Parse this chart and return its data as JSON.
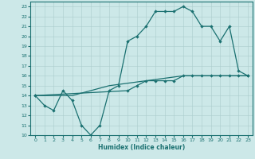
{
  "title": "",
  "xlabel": "Humidex (Indice chaleur)",
  "background_color": "#cce8e8",
  "line_color": "#1a7070",
  "grid_color": "#aacccc",
  "xlim": [
    -0.5,
    23.5
  ],
  "ylim": [
    10,
    23.5
  ],
  "yticks": [
    10,
    11,
    12,
    13,
    14,
    15,
    16,
    17,
    18,
    19,
    20,
    21,
    22,
    23
  ],
  "xticks": [
    0,
    1,
    2,
    3,
    4,
    5,
    6,
    7,
    8,
    9,
    10,
    11,
    12,
    13,
    14,
    15,
    16,
    17,
    18,
    19,
    20,
    21,
    22,
    23
  ],
  "line1_x": [
    0,
    1,
    2,
    3,
    4,
    5,
    6,
    7,
    8,
    9,
    10,
    11,
    12,
    13,
    14,
    15,
    16,
    17,
    18,
    19,
    20,
    21,
    22,
    23
  ],
  "line1_y": [
    14,
    13,
    12.5,
    14.5,
    13.5,
    11,
    10,
    11,
    14.5,
    15,
    19.5,
    20,
    21,
    22.5,
    22.5,
    22.5,
    23,
    22.5,
    21,
    21,
    19.5,
    21,
    16.5,
    16
  ],
  "line2_x": [
    0,
    1,
    2,
    3,
    4,
    5,
    6,
    7,
    8,
    9,
    10,
    11,
    12,
    13,
    14,
    15,
    16,
    17,
    18,
    19,
    20,
    21,
    22,
    23
  ],
  "line2_y": [
    14,
    13,
    12.5,
    14.5,
    13.5,
    11,
    10,
    11,
    14.5,
    15,
    null,
    null,
    null,
    null,
    null,
    null,
    null,
    null,
    null,
    null,
    null,
    null,
    null,
    null
  ],
  "line3_x": [
    0,
    4,
    8,
    12,
    16,
    20,
    23
  ],
  "line3_y": [
    14,
    14,
    15,
    15.5,
    16,
    16,
    16
  ],
  "line4_x": [
    0,
    10,
    11,
    12,
    13,
    14,
    15,
    16,
    17,
    18,
    19,
    20,
    21,
    22,
    23
  ],
  "line4_y": [
    14,
    14.5,
    15,
    15.5,
    15.5,
    15.5,
    15.5,
    16,
    16,
    16,
    16,
    16,
    16,
    16,
    16
  ]
}
